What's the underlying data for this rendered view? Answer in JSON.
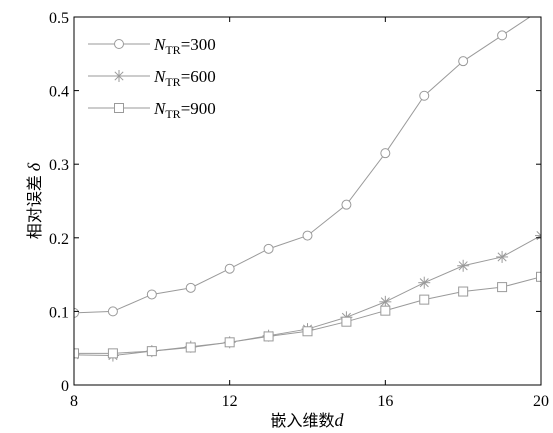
{
  "chart_data": {
    "type": "line",
    "x": [
      8,
      9,
      10,
      11,
      12,
      13,
      14,
      15,
      16,
      17,
      18,
      19,
      20
    ],
    "xlim": [
      8,
      20
    ],
    "ylim": [
      0,
      0.5
    ],
    "xticks": [
      8,
      12,
      16,
      20
    ],
    "yticks": [
      0,
      0.1,
      0.2,
      0.3,
      0.4,
      0.5
    ],
    "xtick_labels": [
      "8",
      "12",
      "16",
      "20"
    ],
    "ytick_labels": [
      "0",
      "0.1",
      "0.2",
      "0.3",
      "0.4",
      "0.5"
    ],
    "xlabel_main": "嵌入维数",
    "xlabel_sym": "d",
    "ylabel_main": "相对误差",
    "ylabel_sym": "δ",
    "legend_position": "top-left",
    "grid": false,
    "series": [
      {
        "name_sym": "N",
        "name_sub": "TR",
        "name_val": "=300",
        "marker": "circle",
        "color": "#9a9a9a",
        "x": [
          8,
          9,
          10,
          11,
          12,
          13,
          14,
          15,
          16,
          17,
          18,
          19,
          20
        ],
        "values": [
          0.098,
          0.1,
          0.123,
          0.132,
          0.158,
          0.185,
          0.203,
          0.245,
          0.315,
          0.393,
          0.44,
          0.475,
          0.51
        ]
      },
      {
        "name_sym": "N",
        "name_sub": "TR",
        "name_val": "=600",
        "marker": "star",
        "color": "#9a9a9a",
        "x": [
          8,
          9,
          10,
          11,
          12,
          13,
          14,
          15,
          16,
          17,
          18,
          19,
          20
        ],
        "values": [
          0.041,
          0.04,
          0.046,
          0.052,
          0.058,
          0.067,
          0.076,
          0.092,
          0.113,
          0.139,
          0.162,
          0.174,
          0.203
        ]
      },
      {
        "name_sym": "N",
        "name_sub": "TR",
        "name_val": "=900",
        "marker": "square",
        "color": "#9a9a9a",
        "x": [
          8,
          9,
          10,
          11,
          12,
          13,
          14,
          15,
          16,
          17,
          18,
          19,
          20
        ],
        "values": [
          0.043,
          0.043,
          0.046,
          0.051,
          0.058,
          0.066,
          0.073,
          0.086,
          0.101,
          0.116,
          0.127,
          0.133,
          0.147
        ]
      }
    ]
  }
}
